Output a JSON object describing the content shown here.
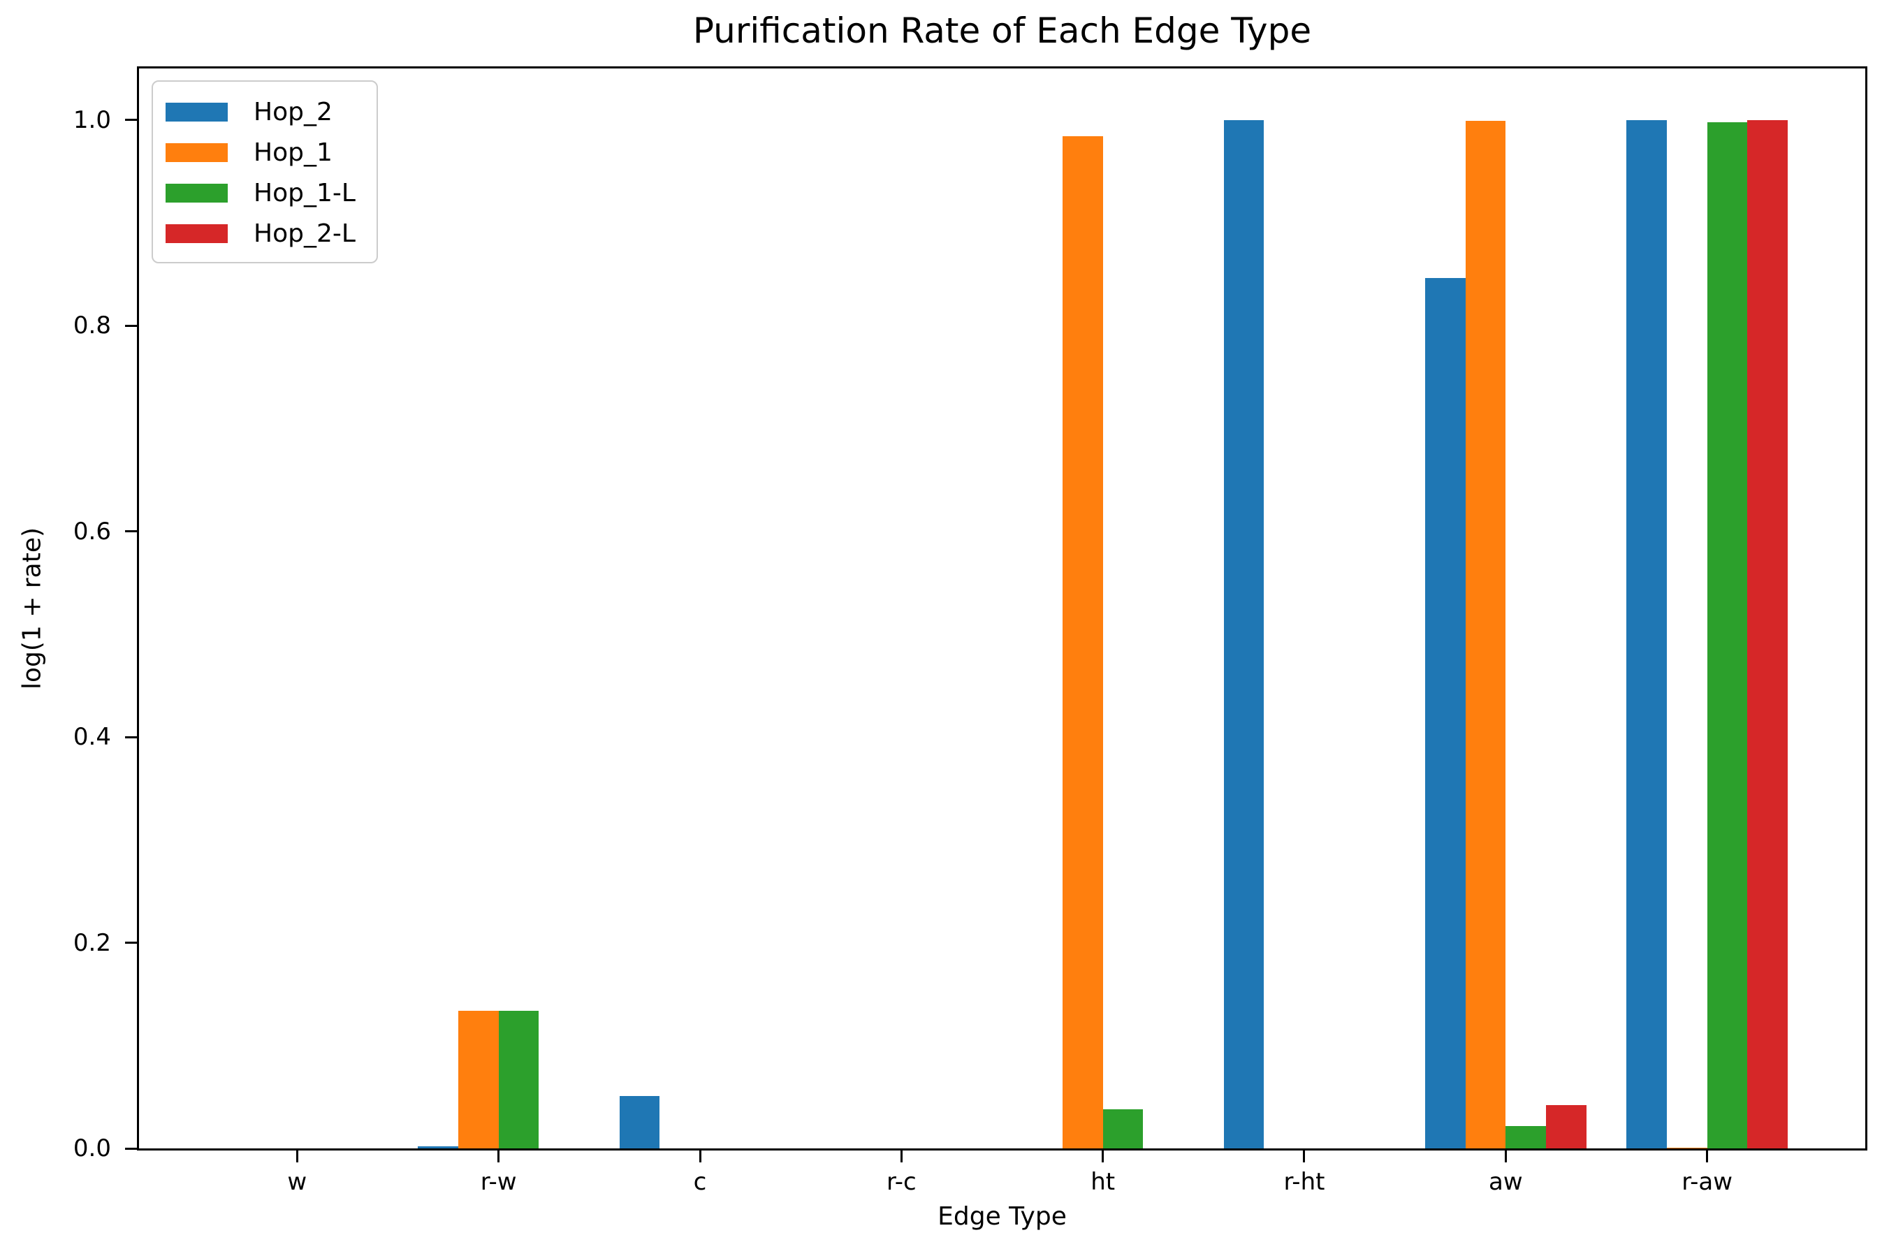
{
  "chart_data": {
    "type": "bar",
    "title": "Purification Rate of Each Edge Type",
    "xlabel": "Edge Type",
    "ylabel": "log(1 + rate)",
    "categories": [
      "w",
      "r-w",
      "c",
      "r-c",
      "ht",
      "r-ht",
      "aw",
      "r-aw"
    ],
    "series": [
      {
        "name": "Hop_2",
        "color": "#1f77b4",
        "values": [
          0,
          0.002,
          0.051,
          0,
          0,
          1.0,
          0.846,
          1.0
        ]
      },
      {
        "name": "Hop_1",
        "color": "#ff7f0e",
        "values": [
          0,
          0.134,
          0,
          0,
          0.984,
          0,
          0.999,
          0.001
        ]
      },
      {
        "name": "Hop_1-L",
        "color": "#2ca02c",
        "values": [
          0,
          0.134,
          0,
          0,
          0.038,
          0,
          0.022,
          0.998
        ]
      },
      {
        "name": "Hop_2-L",
        "color": "#d62728",
        "values": [
          0,
          0,
          0,
          0,
          0,
          0,
          0.042,
          1.0
        ]
      }
    ],
    "yticks": [
      0.0,
      0.2,
      0.4,
      0.6,
      0.8,
      1.0
    ],
    "ylim": [
      0,
      1.05
    ],
    "xlim": [
      -0.785,
      7.785
    ],
    "bar_width": 0.2,
    "grid": false,
    "legend_position": "upper left",
    "axis_color": "#000000"
  }
}
